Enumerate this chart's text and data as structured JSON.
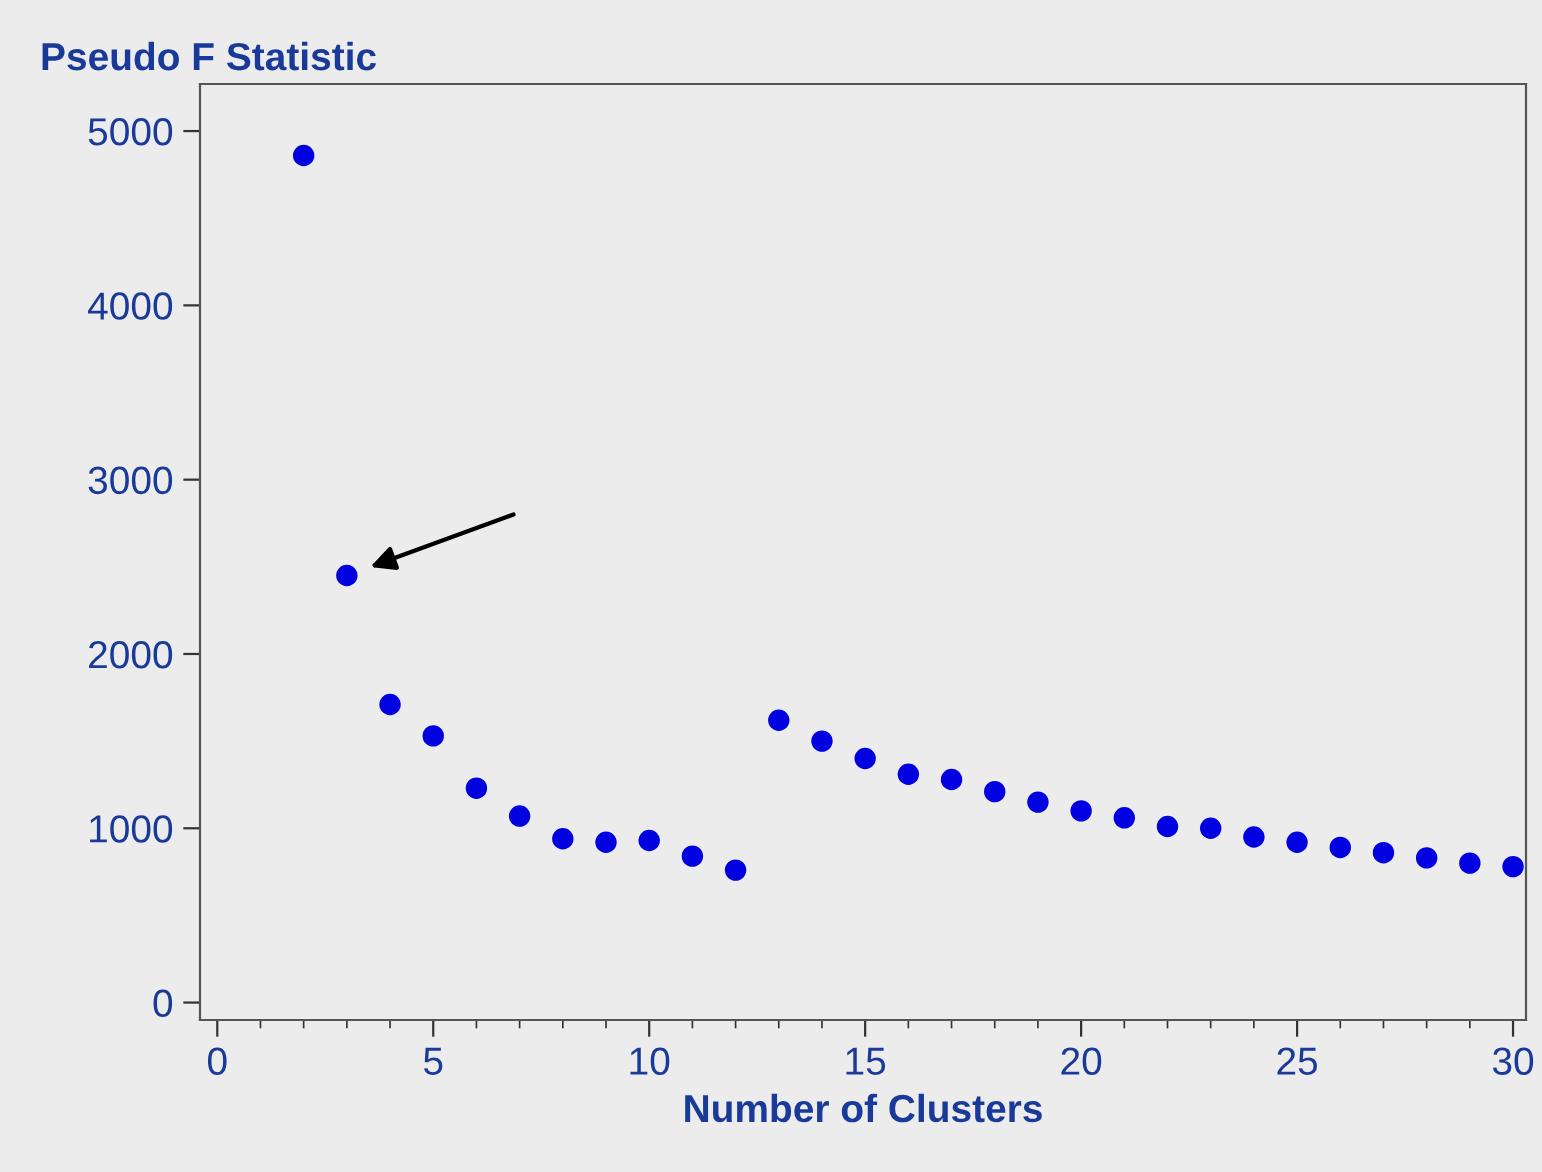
{
  "chart_data": {
    "type": "scatter",
    "title": "Pseudo F Statistic",
    "xlabel": "Number of Clusters",
    "x": [
      2,
      3,
      4,
      5,
      6,
      7,
      8,
      9,
      10,
      11,
      12,
      13,
      14,
      15,
      16,
      17,
      18,
      19,
      20,
      21,
      22,
      23,
      24,
      25,
      26,
      27,
      28,
      29,
      30
    ],
    "series": [
      {
        "color": "#0000e0",
        "values": [
          4860,
          2450,
          1710,
          1530,
          1230,
          1070,
          940,
          920,
          930,
          840,
          760,
          1620,
          1500,
          1400,
          1310,
          1280,
          1210,
          1150,
          1100,
          1060,
          1010,
          1000,
          950,
          920,
          890,
          860,
          830,
          800,
          780
        ]
      }
    ],
    "xlim": [
      -0.4,
      30.3
    ],
    "ylim": [
      -100,
      5270
    ],
    "xticks": [
      0,
      5,
      10,
      15,
      20,
      25,
      30
    ],
    "yticks": [
      0,
      1000,
      2000,
      3000,
      4000,
      5000
    ],
    "marker": "circle",
    "grid": false,
    "legend": false
  }
}
